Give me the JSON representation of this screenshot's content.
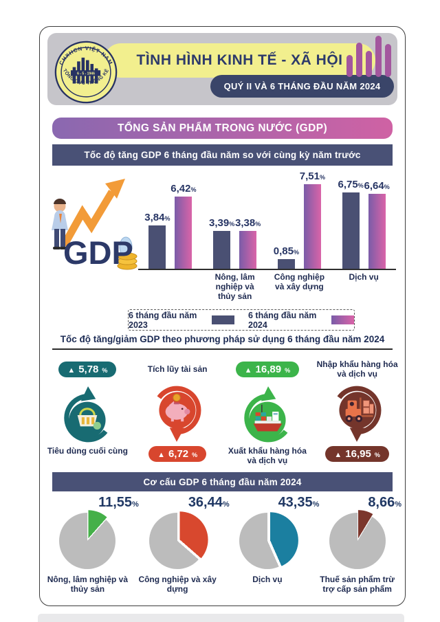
{
  "header": {
    "logo": {
      "arc_top": "CHXHCN VIỆT NAM",
      "arc_bottom": "TỔNG CỤC THỐNG KÊ",
      "center": "6 - 5 - 1946"
    },
    "title": "TÌNH HÌNH KINH TẾ - XÃ HỘI",
    "period_badge": "QUÝ II VÀ 6 THÁNG ĐẦU NĂM 2024"
  },
  "section_banner": "TỔNG SẢN PHẨM TRONG NƯỚC (GDP)",
  "illustration": {
    "gdp_text": "GDP"
  },
  "usage_title": "Tốc độ tăng/giảm GDP theo phương pháp sử dụng 6 tháng đầu năm 2024",
  "usage_items": [
    {
      "label": "Tiêu dùng cuối cùng",
      "arrow": "▲",
      "display": "5,78",
      "unit": "%",
      "color": "#186b72",
      "badge_position": "top",
      "icon": "shopping-basket"
    },
    {
      "label": "Tích lũy tài sản",
      "arrow": "▲",
      "display": "6,72",
      "unit": "%",
      "color": "#d8462e",
      "badge_position": "bottom",
      "icon": "piggy-bank"
    },
    {
      "label": "Xuất khẩu hàng hóa và dịch vụ",
      "arrow": "▲",
      "display": "16,89",
      "unit": "%",
      "color": "#3cb44a",
      "badge_position": "top",
      "icon": "cargo-ship"
    },
    {
      "label": "Nhập khẩu hàng hóa và dịch vụ",
      "arrow": "▲",
      "display": "16,95",
      "unit": "%",
      "color": "#74352b",
      "badge_position": "bottom",
      "icon": "forklift"
    }
  ],
  "chart_data": [
    {
      "type": "bar",
      "title": "Tốc độ tăng GDP 6 tháng đầu năm so với cùng kỳ năm trước",
      "unit": "%",
      "ylim": [
        0,
        8
      ],
      "grid": false,
      "legend_position": "bottom",
      "tick_labels": [
        "",
        "Nông, lâm nghiệp và thủy sản",
        "Công nghiệp và xây dựng",
        "Dịch vụ"
      ],
      "series": [
        {
          "name": "6 tháng đầu năm 2023",
          "color": "#4a5073",
          "values": [
            3.84,
            3.39,
            0.85,
            6.75
          ],
          "labels": [
            "3,84",
            "3,39",
            "0,85",
            "6,75"
          ]
        },
        {
          "name": "6 tháng đầu năm 2024",
          "gradient": [
            "#7a5ca8",
            "#da64a8"
          ],
          "values": [
            6.42,
            3.38,
            7.51,
            6.64
          ],
          "labels": [
            "6,42",
            "3,38",
            "7,51",
            "6,64"
          ]
        }
      ]
    },
    {
      "type": "pie",
      "title": "Cơ cấu GDP 6 tháng đầu năm 2024",
      "unit": "%",
      "gray": "#bcbcbc",
      "slices": [
        {
          "label": "Nông, lâm nghiệp và thủy sản",
          "value": 11.55,
          "display": "11,55",
          "color": "#45b049"
        },
        {
          "label": "Công nghiệp và xây dựng",
          "value": 36.44,
          "display": "36,44",
          "color": "#d8482e"
        },
        {
          "label": "Dịch vụ",
          "value": 43.35,
          "display": "43,35",
          "color": "#1b7fa0"
        },
        {
          "label": "Thuế sản phẩm trừ trợ cấp sản phẩm",
          "value": 8.66,
          "display": "8,66",
          "color": "#7b362c"
        }
      ]
    }
  ]
}
